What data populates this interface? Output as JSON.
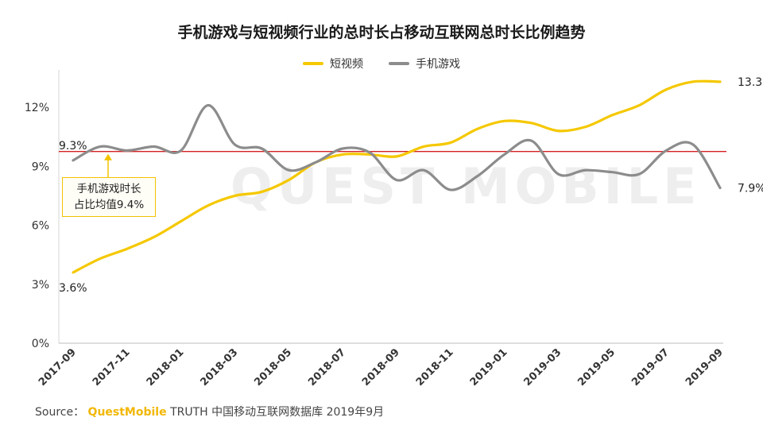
{
  "chart_data": {
    "type": "line",
    "title": "手机游戏与短视频行业的总时长占移动互联网总时长比例趋势",
    "categories": [
      "2017-09",
      "2017-10",
      "2017-11",
      "2017-12",
      "2018-01",
      "2018-02",
      "2018-03",
      "2018-04",
      "2018-05",
      "2018-06",
      "2018-07",
      "2018-08",
      "2018-09",
      "2018-10",
      "2018-11",
      "2018-12",
      "2019-01",
      "2019-02",
      "2019-03",
      "2019-04",
      "2019-05",
      "2019-06",
      "2019-07",
      "2019-08",
      "2019-09"
    ],
    "tick_labels": [
      "2017-09",
      "2017-11",
      "2018-01",
      "2018-03",
      "2018-05",
      "2018-07",
      "2018-09",
      "2018-11",
      "2019-01",
      "2019-03",
      "2019-05",
      "2019-07",
      "2019-09"
    ],
    "series": [
      {
        "name": "短视频",
        "color": "#f5c800",
        "values": [
          3.6,
          4.3,
          4.8,
          5.4,
          6.2,
          7.0,
          7.5,
          7.7,
          8.3,
          9.2,
          9.6,
          9.6,
          9.5,
          10.0,
          10.2,
          10.9,
          11.3,
          11.2,
          10.8,
          11.0,
          11.6,
          12.1,
          12.9,
          13.3,
          13.3
        ]
      },
      {
        "name": "手机游戏",
        "color": "#8c8c8c",
        "values": [
          9.3,
          10.0,
          9.8,
          10.0,
          9.8,
          12.1,
          10.1,
          9.9,
          8.8,
          9.2,
          9.9,
          9.7,
          8.3,
          8.8,
          7.8,
          8.5,
          9.6,
          10.3,
          8.6,
          8.8,
          8.7,
          8.6,
          9.8,
          10.1,
          7.9
        ]
      }
    ],
    "y_ticks": [
      "0%",
      "3%",
      "6%",
      "9%",
      "12%"
    ],
    "ylim": [
      0,
      14
    ],
    "reference_line": {
      "value": 9.75,
      "color": "#d42020"
    },
    "data_labels": {
      "short_video_start": "3.6%",
      "short_video_end": "13.3%",
      "game_start": "9.3%",
      "game_end": "7.9%"
    },
    "annotation": {
      "line1": "手机游戏时长",
      "line2": "占比均值9.4%"
    },
    "legend_position": "top-center"
  },
  "watermark": "QUEST MOBILE",
  "source": {
    "label": "Source：",
    "brand": "QuestMobile",
    "text": "TRUTH 中国移动互联网数据库 2019年9月"
  }
}
